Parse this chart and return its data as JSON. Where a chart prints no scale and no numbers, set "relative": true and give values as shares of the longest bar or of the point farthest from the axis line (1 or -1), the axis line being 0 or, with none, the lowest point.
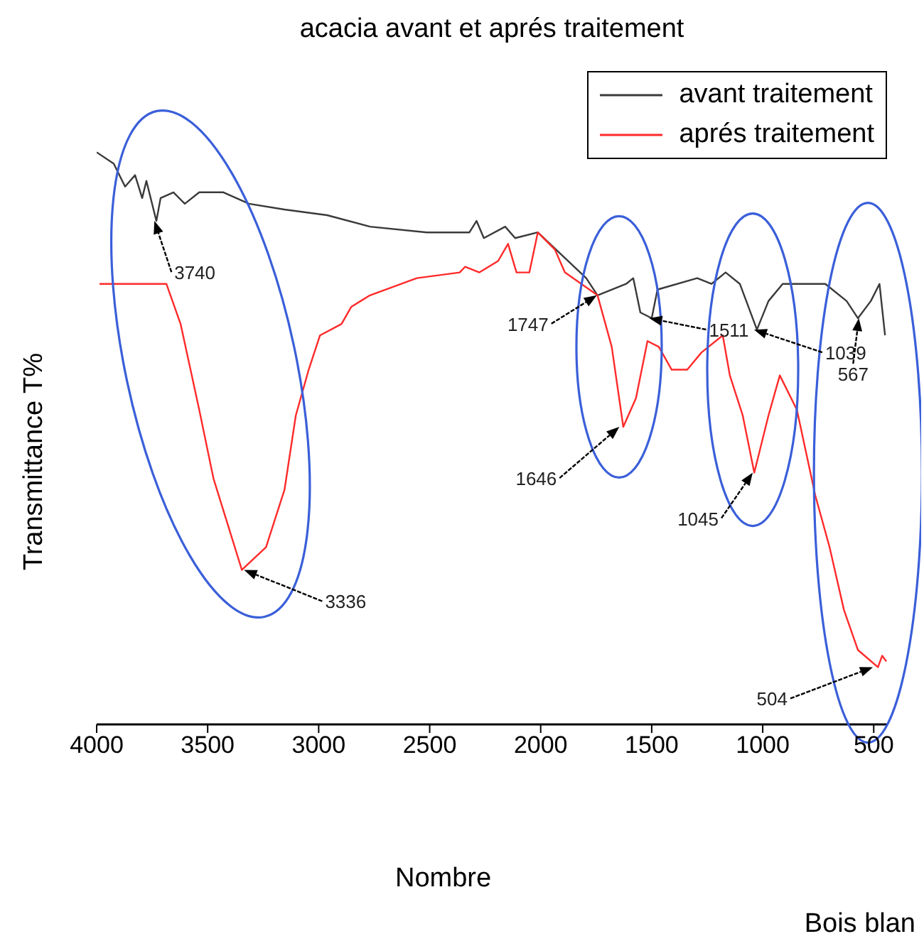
{
  "chart_data": {
    "type": "line",
    "title": "acacia avant et aprés traitement",
    "xlabel": "Nombre",
    "ylabel": "Transmittance T%",
    "relative": true,
    "xlim": [
      4000,
      440
    ],
    "xticks": [
      4000,
      3500,
      3000,
      2500,
      2000,
      1500,
      1000,
      500
    ],
    "legend": "top right",
    "marker": "none",
    "line_style": "solid",
    "series": [
      {
        "name": "avant traitement",
        "color": "#3a3a3a",
        "x": [
          4000,
          3923,
          3872,
          3827,
          3795,
          3776,
          3731,
          3712,
          3654,
          3603,
          3538,
          3429,
          3314,
          3154,
          2962,
          2769,
          2513,
          2321,
          2289,
          2256,
          2160,
          2115,
          2013,
          1904,
          1795,
          1744,
          1615,
          1583,
          1551,
          1500,
          1474,
          1295,
          1231,
          1167,
          1103,
          1026,
          974,
          910,
          814,
          718,
          622,
          571,
          513,
          474,
          449
        ],
        "values": [
          1.0,
          0.98,
          0.94,
          0.96,
          0.92,
          0.95,
          0.88,
          0.92,
          0.93,
          0.91,
          0.93,
          0.93,
          0.91,
          0.9,
          0.89,
          0.87,
          0.86,
          0.86,
          0.88,
          0.85,
          0.87,
          0.85,
          0.86,
          0.82,
          0.78,
          0.75,
          0.77,
          0.78,
          0.72,
          0.71,
          0.76,
          0.78,
          0.77,
          0.79,
          0.77,
          0.69,
          0.74,
          0.77,
          0.77,
          0.77,
          0.74,
          0.71,
          0.74,
          0.77,
          0.68
        ]
      },
      {
        "name": "aprés traitement",
        "color": "#ff2a2a",
        "x": [
          3987,
          3686,
          3622,
          3538,
          3474,
          3346,
          3237,
          3154,
          3103,
          3045,
          2994,
          2897,
          2853,
          2769,
          2558,
          2365,
          2340,
          2276,
          2192,
          2147,
          2109,
          2051,
          2013,
          1936,
          1891,
          1744,
          1680,
          1628,
          1571,
          1519,
          1468,
          1410,
          1340,
          1276,
          1180,
          1148,
          1090,
          1038,
          974,
          923,
          846,
          763,
          699,
          634,
          571,
          481,
          462,
          443
        ],
        "values": [
          0.77,
          0.77,
          0.7,
          0.55,
          0.43,
          0.27,
          0.31,
          0.41,
          0.54,
          0.62,
          0.68,
          0.7,
          0.73,
          0.75,
          0.78,
          0.79,
          0.8,
          0.79,
          0.81,
          0.84,
          0.79,
          0.79,
          0.86,
          0.83,
          0.79,
          0.75,
          0.66,
          0.52,
          0.57,
          0.67,
          0.66,
          0.62,
          0.62,
          0.65,
          0.68,
          0.61,
          0.54,
          0.44,
          0.54,
          0.61,
          0.55,
          0.4,
          0.31,
          0.2,
          0.13,
          0.1,
          0.12,
          0.11
        ]
      }
    ],
    "annotations": [
      {
        "text": "3740",
        "x": 3740,
        "y": 0.88
      },
      {
        "text": "3336",
        "x": 3336,
        "y": 0.27
      },
      {
        "text": "1747",
        "x": 1747,
        "y": 0.75
      },
      {
        "text": "1511",
        "x": 1511,
        "y": 0.71
      },
      {
        "text": "1646",
        "x": 1646,
        "y": 0.52
      },
      {
        "text": "1039",
        "x": 1039,
        "y": 0.69
      },
      {
        "text": "1045",
        "x": 1045,
        "y": 0.44
      },
      {
        "text": "567",
        "x": 567,
        "y": 0.71
      },
      {
        "text": "504",
        "x": 504,
        "y": 0.1
      },
      "Bois blan"
    ]
  }
}
